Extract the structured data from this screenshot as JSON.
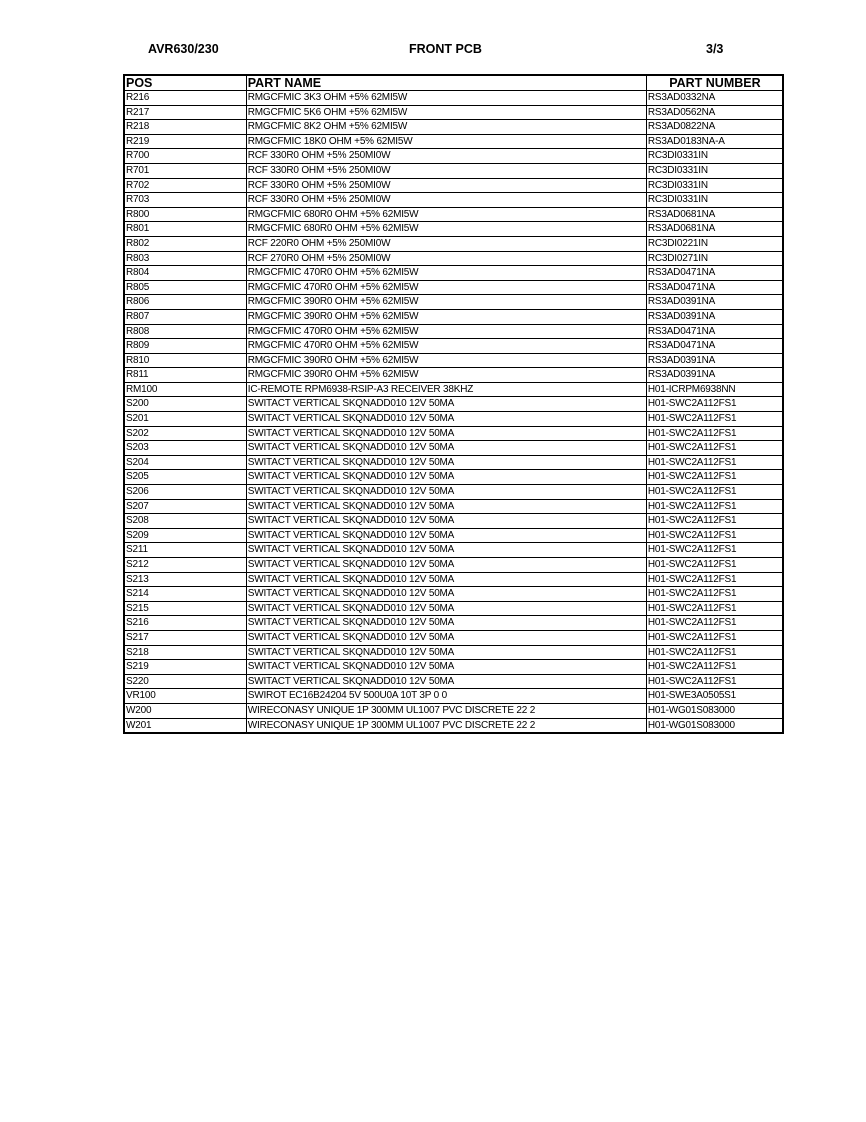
{
  "header": {
    "model": "AVR630/230",
    "title": "FRONT PCB",
    "page": "3/3"
  },
  "table": {
    "columns": [
      "POS",
      "PART NAME",
      "PART NUMBER"
    ],
    "rows": [
      [
        "R216",
        "RMGCFMIC 3K3 OHM +5% 62MI5W",
        "RS3AD0332NA"
      ],
      [
        "R217",
        "RMGCFMIC 5K6 OHM +5% 62MI5W",
        "RS3AD0562NA"
      ],
      [
        "R218",
        "RMGCFMIC 8K2 OHM +5% 62MI5W",
        "RS3AD0822NA"
      ],
      [
        "R219",
        "RMGCFMIC 18K0 OHM +5% 62MI5W",
        "RS3AD0183NA-A"
      ],
      [
        "R700",
        "RCF 330R0 OHM +5% 250MI0W",
        "RC3DI0331IN"
      ],
      [
        "R701",
        "RCF 330R0 OHM +5% 250MI0W",
        "RC3DI0331IN"
      ],
      [
        "R702",
        "RCF 330R0 OHM +5% 250MI0W",
        "RC3DI0331IN"
      ],
      [
        "R703",
        "RCF 330R0 OHM +5% 250MI0W",
        "RC3DI0331IN"
      ],
      [
        "R800",
        "RMGCFMIC 680R0 OHM +5% 62MI5W",
        "RS3AD0681NA"
      ],
      [
        "R801",
        "RMGCFMIC 680R0 OHM +5% 62MI5W",
        "RS3AD0681NA"
      ],
      [
        "R802",
        "RCF 220R0 OHM +5% 250MI0W",
        "RC3DI0221IN"
      ],
      [
        "R803",
        "RCF 270R0 OHM +5% 250MI0W",
        "RC3DI0271IN"
      ],
      [
        "R804",
        "RMGCFMIC 470R0 OHM +5% 62MI5W",
        "RS3AD0471NA"
      ],
      [
        "R805",
        "RMGCFMIC 470R0 OHM +5% 62MI5W",
        "RS3AD0471NA"
      ],
      [
        "R806",
        "RMGCFMIC 390R0 OHM +5% 62MI5W",
        "RS3AD0391NA"
      ],
      [
        "R807",
        "RMGCFMIC 390R0 OHM +5% 62MI5W",
        "RS3AD0391NA"
      ],
      [
        "R808",
        "RMGCFMIC 470R0 OHM +5% 62MI5W",
        "RS3AD0471NA"
      ],
      [
        "R809",
        "RMGCFMIC 470R0 OHM +5% 62MI5W",
        "RS3AD0471NA"
      ],
      [
        "R810",
        "RMGCFMIC 390R0 OHM +5% 62MI5W",
        "RS3AD0391NA"
      ],
      [
        "R811",
        "RMGCFMIC 390R0 OHM +5% 62MI5W",
        "RS3AD0391NA"
      ],
      [
        "RM100",
        "IC-REMOTE RPM6938-RSIP-A3 RECEIVER 38KHZ",
        "H01-ICRPM6938NN"
      ],
      [
        "S200",
        "SWITACT VERTICAL SKQNADD010 12V 50MA",
        "H01-SWC2A112FS1"
      ],
      [
        "S201",
        "SWITACT VERTICAL SKQNADD010 12V 50MA",
        "H01-SWC2A112FS1"
      ],
      [
        "S202",
        "SWITACT VERTICAL SKQNADD010 12V 50MA",
        "H01-SWC2A112FS1"
      ],
      [
        "S203",
        "SWITACT VERTICAL SKQNADD010 12V 50MA",
        "H01-SWC2A112FS1"
      ],
      [
        "S204",
        "SWITACT VERTICAL SKQNADD010 12V 50MA",
        "H01-SWC2A112FS1"
      ],
      [
        "S205",
        "SWITACT VERTICAL SKQNADD010 12V 50MA",
        "H01-SWC2A112FS1"
      ],
      [
        "S206",
        "SWITACT VERTICAL SKQNADD010 12V 50MA",
        "H01-SWC2A112FS1"
      ],
      [
        "S207",
        "SWITACT VERTICAL SKQNADD010 12V 50MA",
        "H01-SWC2A112FS1"
      ],
      [
        "S208",
        "SWITACT VERTICAL SKQNADD010 12V 50MA",
        "H01-SWC2A112FS1"
      ],
      [
        "S209",
        "SWITACT VERTICAL SKQNADD010 12V 50MA",
        "H01-SWC2A112FS1"
      ],
      [
        "S211",
        "SWITACT VERTICAL SKQNADD010 12V 50MA",
        "H01-SWC2A112FS1"
      ],
      [
        "S212",
        "SWITACT VERTICAL SKQNADD010 12V 50MA",
        "H01-SWC2A112FS1"
      ],
      [
        "S213",
        "SWITACT VERTICAL SKQNADD010 12V 50MA",
        "H01-SWC2A112FS1"
      ],
      [
        "S214",
        "SWITACT VERTICAL SKQNADD010 12V 50MA",
        "H01-SWC2A112FS1"
      ],
      [
        "S215",
        "SWITACT VERTICAL SKQNADD010 12V 50MA",
        "H01-SWC2A112FS1"
      ],
      [
        "S216",
        "SWITACT VERTICAL SKQNADD010 12V 50MA",
        "H01-SWC2A112FS1"
      ],
      [
        "S217",
        "SWITACT VERTICAL SKQNADD010 12V 50MA",
        "H01-SWC2A112FS1"
      ],
      [
        "S218",
        "SWITACT VERTICAL SKQNADD010 12V 50MA",
        "H01-SWC2A112FS1"
      ],
      [
        "S219",
        "SWITACT VERTICAL SKQNADD010 12V 50MA",
        "H01-SWC2A112FS1"
      ],
      [
        "S220",
        "SWITACT VERTICAL SKQNADD010 12V 50MA",
        "H01-SWC2A112FS1"
      ],
      [
        "VR100",
        "SWIROT EC16B24204 5V 500U0A 10T 3P 0 0",
        "H01-SWE3A0505S1"
      ],
      [
        "W200",
        "WIRECONASY UNIQUE 1P 300MM UL1007 PVC DISCRETE 22 2",
        "H01-WG01S083000"
      ],
      [
        "W201",
        "WIRECONASY UNIQUE 1P 300MM UL1007 PVC DISCRETE 22 2",
        "H01-WG01S083000"
      ]
    ]
  }
}
